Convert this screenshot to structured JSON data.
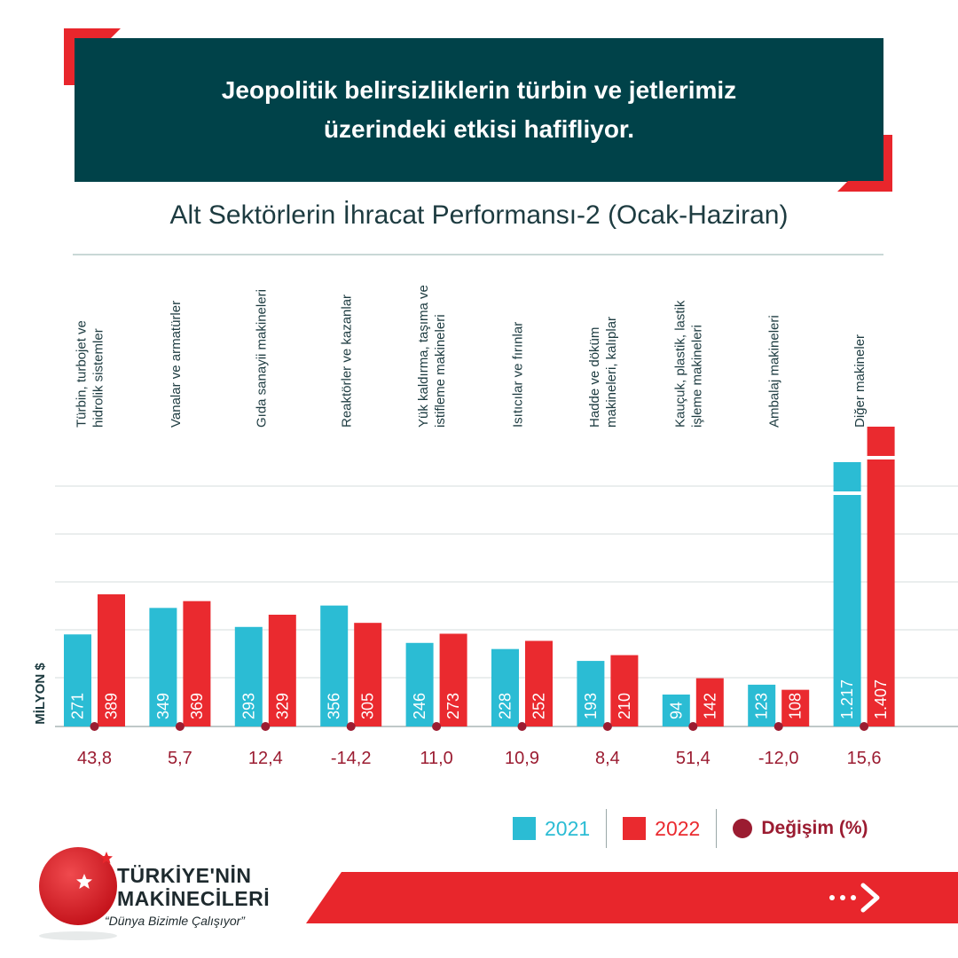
{
  "header": {
    "line1": "Jeopolitik belirsizliklerin türbin ve jetlerimiz",
    "line2": "üzerindeki etkisi hafifliyor."
  },
  "chart_data": {
    "type": "bar",
    "title": "Alt Sektörlerin İhracat Performansı-2 (Ocak-Haziran)",
    "ylabel": "MİLYON $",
    "grid": true,
    "categories": [
      [
        "Türbin, turbojet ve",
        "hidrolik sistemler"
      ],
      [
        "Vanalar  ve armatürler"
      ],
      [
        "Gıda sanayii makineleri"
      ],
      [
        "Reaktörler ve kazanlar"
      ],
      [
        "Yük kaldırma, taşıma ve",
        "istifleme makineleri"
      ],
      [
        "Isıtıcılar ve fırınlar"
      ],
      [
        "Hadde ve döküm",
        "makineleri, kalıplar"
      ],
      [
        "Kauçuk, plastik, lastik",
        "işleme makineleri"
      ],
      [
        "Ambalaj makineleri"
      ],
      [
        "Diğer makineler"
      ]
    ],
    "series": [
      {
        "name": "2021",
        "color": "#2bbcd4",
        "values": [
          271,
          349,
          293,
          356,
          246,
          228,
          193,
          94,
          123,
          1217
        ],
        "labels": [
          "271",
          "349",
          "293",
          "356",
          "246",
          "228",
          "193",
          "94",
          "123",
          "1.217"
        ]
      },
      {
        "name": "2022",
        "color": "#ea2a2f",
        "values": [
          389,
          369,
          329,
          305,
          273,
          252,
          210,
          142,
          108,
          1407
        ],
        "labels": [
          "389",
          "369",
          "329",
          "305",
          "273",
          "252",
          "210",
          "142",
          "108",
          "1.407"
        ]
      }
    ],
    "change": {
      "name": "Değişim (%)",
      "color": "#9b1c31",
      "values": [
        43.8,
        5.7,
        12.4,
        -14.2,
        11.0,
        10.9,
        8.4,
        51.4,
        -12.0,
        15.6
      ],
      "labels": [
        "43,8",
        "5,7",
        "12,4",
        "-14,2",
        "11,0",
        "10,9",
        "8,4",
        "51,4",
        "-12,0",
        "15,6"
      ]
    },
    "axis_break": {
      "series_index": 9,
      "note": "broken bars for the last category"
    }
  },
  "legend": {
    "item_2021": "2021",
    "item_2022": "2022",
    "item_change": "Değişim (%)"
  },
  "footer": {
    "brand_line1": "TÜRKİYE'NİN",
    "brand_line2": "MAKİNECİLERİ",
    "slogan": "“Dünya Bizimle Çalışıyor”",
    "next_label": "•••"
  }
}
